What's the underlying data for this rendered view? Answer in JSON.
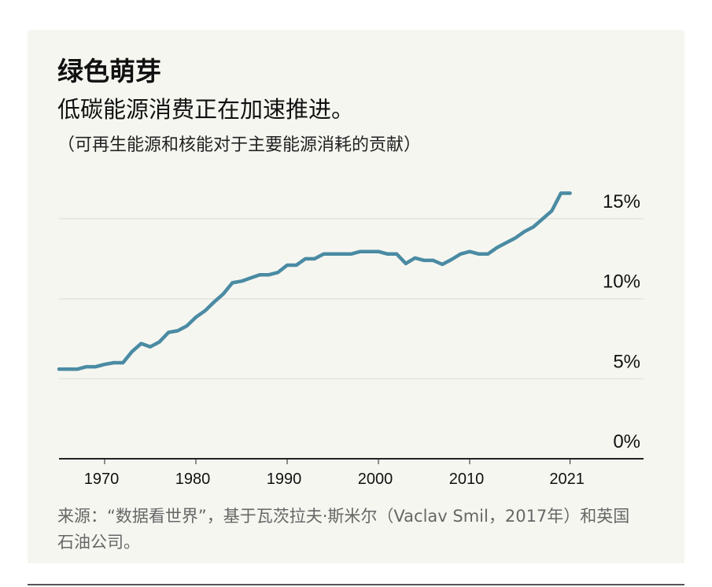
{
  "title": "绿色萌芽",
  "subtitle": "低碳能源消费正在加速推进。",
  "note": "（可再生能源和核能对于主要能源消耗的贡献）",
  "source": "来源：“数据看世界”，基于瓦茨拉夫·斯米尔（Vaclav Smil，2017年）和英国石油公司。",
  "colors": {
    "line": "#4a8ba3",
    "background": "#f6f6f1",
    "grid": "#e3e3de",
    "axis": "#222222"
  },
  "chart_data": {
    "type": "line",
    "title": "绿色萌芽",
    "xlabel": "",
    "ylabel": "",
    "xlim": [
      1965,
      2021
    ],
    "ylim": [
      0,
      15
    ],
    "grid": true,
    "x_ticks": [
      "1970",
      "1980",
      "1990",
      "2000",
      "2010",
      "2021"
    ],
    "y_ticks": [
      "0%",
      "5%",
      "10%",
      "15%"
    ],
    "y_tick_values": [
      0,
      5,
      10,
      15
    ],
    "x_tick_values": [
      1970,
      1980,
      1990,
      2000,
      2010,
      2021
    ],
    "series": [
      {
        "x": [
          1965,
          1966,
          1967,
          1968,
          1969,
          1970,
          1971,
          1972,
          1973,
          1974,
          1975,
          1976,
          1977,
          1978,
          1979,
          1980,
          1981,
          1982,
          1983,
          1984,
          1985,
          1986,
          1987,
          1988,
          1989,
          1990,
          1991,
          1992,
          1993,
          1994,
          1995,
          1996,
          1997,
          1998,
          1999,
          2000,
          2001,
          2002,
          2003,
          2004,
          2005,
          2006,
          2007,
          2008,
          2009,
          2010,
          2011,
          2012,
          2013,
          2014,
          2015,
          2016,
          2017,
          2018,
          2019,
          2020,
          2021
        ],
        "values": [
          5.6,
          5.6,
          5.6,
          5.75,
          5.75,
          5.9,
          6.0,
          6.0,
          6.7,
          7.2,
          7.0,
          7.3,
          7.9,
          8.0,
          8.3,
          8.85,
          9.25,
          9.8,
          10.3,
          11.0,
          11.1,
          11.3,
          11.5,
          11.5,
          11.65,
          12.1,
          12.1,
          12.5,
          12.5,
          12.8,
          12.8,
          12.8,
          12.8,
          12.95,
          12.95,
          12.95,
          12.8,
          12.8,
          12.2,
          12.55,
          12.4,
          12.4,
          12.15,
          12.45,
          12.8,
          12.95,
          12.8,
          12.8,
          13.2,
          13.5,
          13.8,
          14.2,
          14.5,
          15.0,
          15.5,
          16.6,
          16.6
        ]
      }
    ]
  }
}
